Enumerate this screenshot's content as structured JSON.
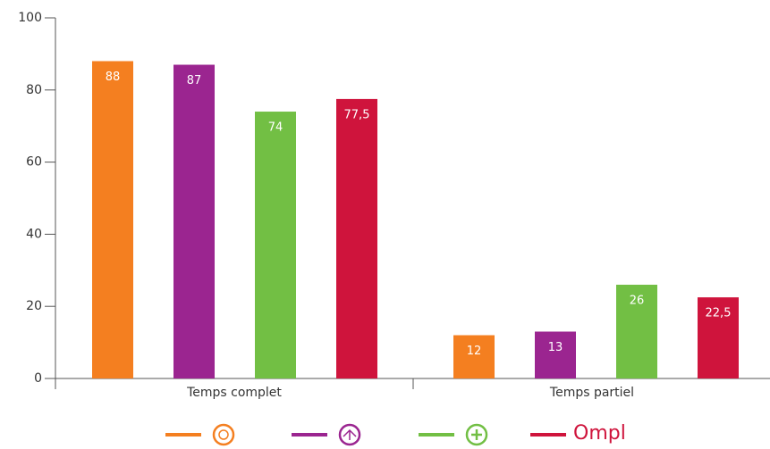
{
  "chart_data": {
    "type": "bar",
    "categories": [
      "Temps complet",
      "Temps partiel"
    ],
    "series": [
      {
        "color": "#f47f20",
        "values": [
          88,
          12
        ]
      },
      {
        "color": "#9b2590",
        "values": [
          87,
          13
        ]
      },
      {
        "color": "#72bf44",
        "values": [
          74,
          26
        ]
      },
      {
        "name": "Ompl",
        "color": "#cf143c",
        "values": [
          77.5,
          22.5
        ],
        "value_labels": [
          "77,5",
          "22,5"
        ]
      }
    ],
    "ylim": [
      0,
      100
    ],
    "yticks": [
      0,
      20,
      40,
      60,
      80,
      100
    ],
    "grid": false,
    "legend": "bottom"
  }
}
